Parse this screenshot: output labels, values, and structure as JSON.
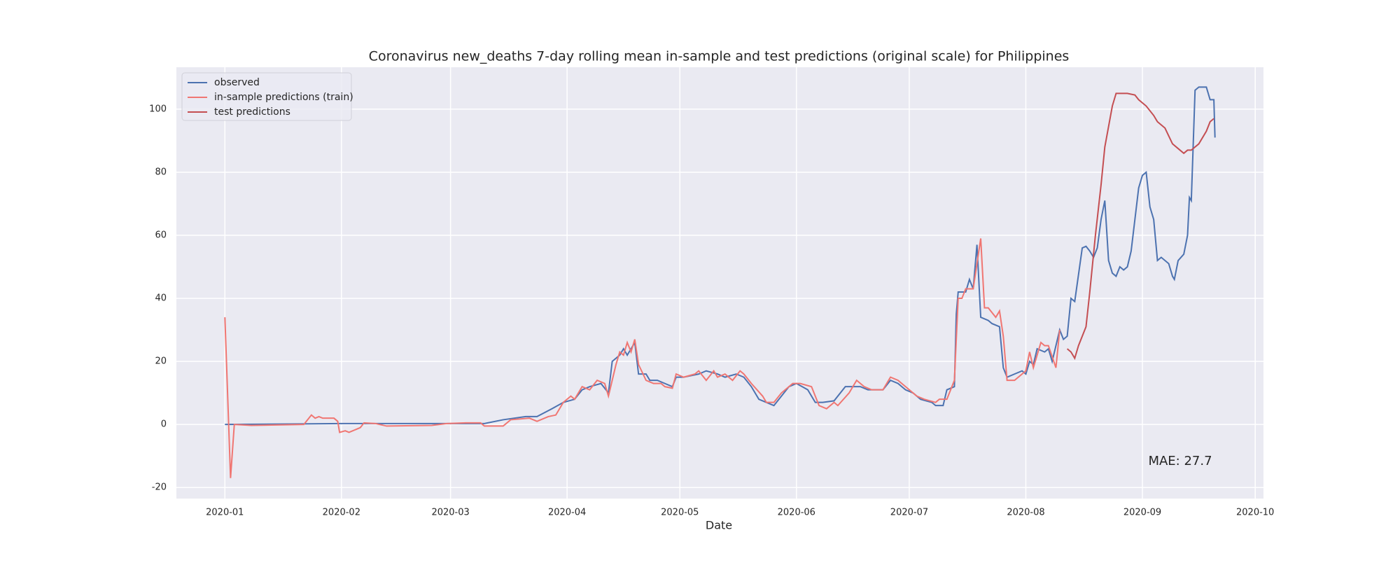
{
  "chart_data": {
    "type": "line",
    "title": "Coronavirus new_deaths 7-day rolling mean in-sample and test predictions (original scale) for Philippines",
    "x_label": "Date",
    "annotation": "MAE: 27.7",
    "xlim": [
      -12.9,
      276.2
    ],
    "ylim": [
      -23.5,
      113.3
    ],
    "xticks": [
      {
        "value": 0,
        "label": "2020-01"
      },
      {
        "value": 31,
        "label": "2020-02"
      },
      {
        "value": 60,
        "label": "2020-03"
      },
      {
        "value": 91,
        "label": "2020-04"
      },
      {
        "value": 121,
        "label": "2020-05"
      },
      {
        "value": 152,
        "label": "2020-06"
      },
      {
        "value": 182,
        "label": "2020-07"
      },
      {
        "value": 213,
        "label": "2020-08"
      },
      {
        "value": 244,
        "label": "2020-09"
      },
      {
        "value": 274,
        "label": "2020-10"
      }
    ],
    "yticks": [
      -20,
      0,
      20,
      40,
      60,
      80,
      100
    ],
    "grid": true,
    "legend": "upper left",
    "series": [
      {
        "name": "observed",
        "color": "#4c72b0",
        "x": [
          0,
          31,
          68,
          69,
          74,
          80,
          83,
          87,
          90,
          93,
          95,
          97,
          100,
          102,
          103,
          105,
          106,
          107,
          109,
          110,
          112,
          113,
          115,
          117,
          119,
          120,
          122,
          126,
          128,
          131,
          133,
          136,
          138,
          140,
          142,
          144,
          146,
          150,
          152,
          155,
          156,
          157,
          159,
          162,
          165,
          169,
          171,
          175,
          177,
          179,
          181,
          183,
          185,
          188,
          189,
          191,
          192,
          194,
          194.5,
          195,
          197,
          198,
          199,
          200,
          201,
          203,
          204,
          206,
          207,
          208,
          210,
          212,
          213,
          214,
          215,
          216,
          218,
          219,
          220,
          222,
          223,
          224,
          225,
          226,
          228,
          229,
          230,
          231,
          232,
          233,
          234,
          235,
          236,
          237,
          238,
          239,
          240,
          241,
          242,
          243,
          244,
          245,
          246,
          247,
          248,
          249,
          251,
          252,
          252.5,
          253.5,
          255,
          256,
          256.5,
          257,
          258,
          259,
          261,
          262,
          263,
          263.3
        ],
        "values": [
          0,
          0.3,
          0.3,
          0.3,
          1.5,
          2.5,
          2.5,
          5,
          7,
          8,
          11,
          12,
          13,
          10,
          20,
          22,
          24,
          22,
          26,
          16,
          16,
          14,
          14,
          13,
          12,
          15,
          15,
          16,
          17,
          16,
          15,
          16,
          15,
          12,
          8,
          7,
          6,
          12,
          13,
          11,
          9,
          7,
          7,
          7.5,
          12,
          12,
          11,
          11,
          14,
          13,
          11,
          10,
          8,
          7,
          6,
          6,
          11,
          12,
          35,
          42,
          42,
          46,
          43,
          57,
          34,
          33,
          32,
          31,
          18,
          15,
          16,
          17,
          16,
          20,
          19,
          24,
          23,
          24,
          20,
          30,
          27,
          28,
          40,
          39,
          56,
          56.5,
          55,
          53,
          56,
          65,
          71,
          52,
          48,
          47,
          50,
          49,
          50,
          55,
          65,
          75,
          79,
          80,
          69,
          65,
          52,
          53,
          51,
          47,
          46,
          52,
          54,
          60,
          72,
          71,
          106,
          107,
          107,
          103,
          103,
          91
        ]
      },
      {
        "name": "in-sample predictions (train)",
        "color": "#f07672",
        "x": [
          0,
          1.5,
          2.5,
          7,
          21,
          23,
          24,
          25,
          26,
          29,
          30,
          30.5,
          32,
          33,
          36,
          37,
          40,
          43,
          55,
          59,
          64,
          68,
          69,
          74,
          76,
          81,
          83,
          86,
          88,
          90,
          92,
          93,
          95,
          97,
          99,
          101,
          102,
          104,
          105,
          106,
          107,
          108,
          109,
          110,
          112,
          114,
          116,
          117,
          119,
          120,
          122,
          125,
          126,
          128,
          130,
          131,
          133,
          135,
          137,
          138,
          140,
          143,
          144,
          146,
          148,
          151,
          153,
          156,
          158,
          160,
          162,
          163,
          166,
          168,
          170,
          172,
          175,
          177,
          179,
          182,
          184,
          186,
          189,
          190,
          192,
          194,
          195,
          196,
          197,
          199,
          201,
          202,
          203,
          205,
          206,
          207,
          208,
          210,
          212,
          213,
          214,
          215,
          217,
          218,
          219,
          221,
          222
        ],
        "values": [
          34,
          -17,
          0,
          -0.3,
          0,
          3,
          2,
          2.5,
          2,
          2,
          1,
          -2.5,
          -2,
          -2.5,
          -1,
          0.5,
          0.3,
          -0.5,
          -0.3,
          0.3,
          0.5,
          0.5,
          -0.5,
          -0.5,
          1.5,
          2,
          1,
          2.5,
          3,
          7,
          9,
          8,
          12,
          11,
          14,
          13,
          9,
          19,
          23,
          22,
          26,
          23,
          27,
          19,
          14,
          13,
          13,
          12,
          11.5,
          16,
          15,
          16,
          17,
          14,
          17,
          15,
          16,
          14,
          17,
          16,
          13,
          9,
          7,
          7,
          10,
          13,
          13,
          12,
          6,
          5,
          7,
          6,
          10,
          14,
          12,
          11,
          11,
          15,
          14,
          11,
          9,
          8,
          7,
          8,
          8,
          14,
          40,
          40,
          43,
          43,
          59,
          37,
          37,
          34,
          36,
          28,
          14,
          14,
          16,
          17,
          23,
          18,
          26,
          25,
          25,
          18,
          30
        ]
      },
      {
        "name": "test predictions",
        "color": "#c44e52",
        "x": [
          224,
          225,
          226,
          227,
          229,
          230,
          231.5,
          233,
          234,
          236,
          237,
          240,
          242,
          243,
          245,
          247,
          248,
          250,
          252,
          254,
          255,
          256,
          257,
          259,
          261,
          262,
          263
        ],
        "values": [
          24,
          23,
          21,
          25,
          31,
          42,
          60,
          76,
          88,
          101,
          105,
          105,
          104.5,
          103,
          101,
          98,
          96,
          94,
          89,
          87,
          86,
          87,
          87,
          89,
          93,
          96,
          97
        ]
      }
    ]
  }
}
